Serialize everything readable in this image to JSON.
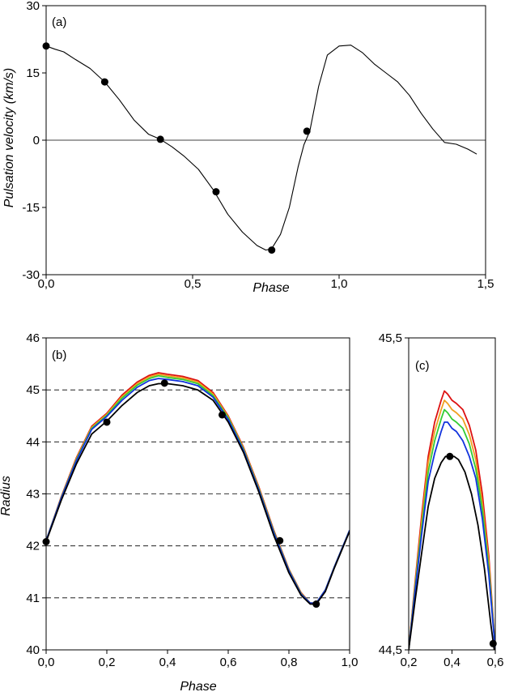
{
  "chart_data": [
    {
      "type": "line",
      "panel_label": "(a)",
      "xlabel": "Phase",
      "ylabel": "Pulsation velocity (km/s)",
      "xlim": [
        0,
        1.5
      ],
      "ylim": [
        -30,
        30
      ],
      "x_ticks": [
        "0,0",
        "0,5",
        "1,0",
        "1,5"
      ],
      "x_tick_values": [
        0,
        0.5,
        1.0,
        1.5
      ],
      "y_ticks": [
        "30",
        "15",
        "0",
        "-15",
        "-30"
      ],
      "y_tick_values": [
        30,
        15,
        0,
        -15,
        -30
      ],
      "reference_line_y": 0,
      "series": [
        {
          "color": "#000000",
          "x": [
            0.0,
            0.03,
            0.06,
            0.1,
            0.15,
            0.2,
            0.25,
            0.3,
            0.35,
            0.39,
            0.43,
            0.47,
            0.52,
            0.57,
            0.62,
            0.67,
            0.72,
            0.75,
            0.77,
            0.8,
            0.83,
            0.86,
            0.88,
            0.9,
            0.93,
            0.96,
            1.0,
            1.04,
            1.08,
            1.12,
            1.16,
            1.2,
            1.24,
            1.28,
            1.32,
            1.36,
            1.4,
            1.44,
            1.47
          ],
          "y": [
            21,
            20.3,
            19.7,
            18,
            16,
            13,
            9,
            4.5,
            1.3,
            0.2,
            -1.5,
            -3.5,
            -6.5,
            -11,
            -16.5,
            -20.5,
            -23.5,
            -24.5,
            -24.2,
            -21,
            -15,
            -6,
            -1,
            2,
            12,
            19,
            21,
            21.2,
            19.5,
            17,
            15,
            13,
            10,
            6,
            2.5,
            -0.5,
            -0.9,
            -2,
            -3.1
          ]
        }
      ],
      "markers": {
        "x": [
          0.0,
          0.2,
          0.39,
          0.58,
          0.77,
          0.89
        ],
        "y": [
          21,
          13,
          0.2,
          -11.5,
          -24.5,
          2
        ]
      }
    },
    {
      "type": "line",
      "panel_label": "(b)",
      "xlabel": "Phase",
      "ylabel": "Radius",
      "xlim": [
        0,
        1.0
      ],
      "ylim": [
        40,
        46
      ],
      "x_ticks": [
        "0,0",
        "0,2",
        "0,4",
        "0,6",
        "0,8",
        "1,0"
      ],
      "x_tick_values": [
        0,
        0.2,
        0.4,
        0.6,
        0.8,
        1.0
      ],
      "y_ticks": [
        "46",
        "45",
        "44",
        "43",
        "42",
        "41",
        "40"
      ],
      "y_tick_values": [
        46,
        45,
        44,
        43,
        42,
        41,
        40
      ],
      "dashed_gridlines_y": [
        41,
        42,
        43,
        44,
        45
      ],
      "series": [
        {
          "color": "#dd1111",
          "x": [
            0.0,
            0.05,
            0.1,
            0.15,
            0.2,
            0.25,
            0.3,
            0.34,
            0.37,
            0.4,
            0.45,
            0.5,
            0.55,
            0.6,
            0.65,
            0.7,
            0.75,
            0.8,
            0.84,
            0.87,
            0.89,
            0.92,
            0.95,
            1.0
          ],
          "y": [
            42.1,
            42.95,
            43.7,
            44.3,
            44.55,
            44.9,
            45.15,
            45.28,
            45.33,
            45.3,
            45.26,
            45.18,
            44.95,
            44.5,
            43.9,
            43.15,
            42.3,
            41.55,
            41.1,
            40.9,
            40.9,
            41.15,
            41.6,
            42.3
          ]
        },
        {
          "color": "#f0a020",
          "x": [
            0.0,
            0.05,
            0.1,
            0.15,
            0.2,
            0.25,
            0.3,
            0.34,
            0.37,
            0.4,
            0.45,
            0.5,
            0.55,
            0.6,
            0.65,
            0.7,
            0.75,
            0.8,
            0.84,
            0.87,
            0.89,
            0.92,
            0.95,
            1.0
          ],
          "y": [
            42.1,
            42.94,
            43.68,
            44.28,
            44.53,
            44.87,
            45.12,
            45.25,
            45.3,
            45.27,
            45.23,
            45.15,
            44.92,
            44.48,
            43.88,
            43.13,
            42.28,
            41.54,
            41.09,
            40.9,
            40.9,
            41.15,
            41.6,
            42.3
          ]
        },
        {
          "color": "#33cc33",
          "x": [
            0.0,
            0.05,
            0.1,
            0.15,
            0.2,
            0.25,
            0.3,
            0.34,
            0.37,
            0.4,
            0.45,
            0.5,
            0.55,
            0.6,
            0.65,
            0.7,
            0.75,
            0.8,
            0.84,
            0.87,
            0.89,
            0.92,
            0.95,
            1.0
          ],
          "y": [
            42.1,
            42.93,
            43.66,
            44.26,
            44.51,
            44.84,
            45.09,
            45.22,
            45.27,
            45.24,
            45.2,
            45.12,
            44.89,
            44.46,
            43.86,
            43.11,
            42.27,
            41.53,
            41.08,
            40.9,
            40.9,
            41.15,
            41.6,
            42.3
          ]
        },
        {
          "color": "#1133dd",
          "x": [
            0.0,
            0.05,
            0.1,
            0.15,
            0.2,
            0.25,
            0.3,
            0.34,
            0.37,
            0.4,
            0.45,
            0.5,
            0.55,
            0.6,
            0.65,
            0.7,
            0.75,
            0.8,
            0.84,
            0.87,
            0.89,
            0.92,
            0.95,
            1.0
          ],
          "y": [
            42.1,
            42.92,
            43.64,
            44.24,
            44.49,
            44.8,
            45.05,
            45.18,
            45.22,
            45.2,
            45.16,
            45.08,
            44.86,
            44.43,
            43.84,
            43.09,
            42.25,
            41.52,
            41.07,
            40.9,
            40.9,
            41.15,
            41.6,
            42.3
          ]
        },
        {
          "color": "#000000",
          "x": [
            0.0,
            0.05,
            0.1,
            0.15,
            0.2,
            0.25,
            0.3,
            0.34,
            0.37,
            0.4,
            0.45,
            0.5,
            0.55,
            0.6,
            0.65,
            0.7,
            0.75,
            0.8,
            0.84,
            0.87,
            0.89,
            0.92,
            0.95,
            1.0
          ],
          "y": [
            42.08,
            42.88,
            43.58,
            44.15,
            44.4,
            44.7,
            44.95,
            45.08,
            45.12,
            45.12,
            45.08,
            45.0,
            44.8,
            44.38,
            43.8,
            43.05,
            42.2,
            41.48,
            41.05,
            40.88,
            40.88,
            41.12,
            41.58,
            42.28
          ]
        }
      ],
      "markers": {
        "x": [
          0.0,
          0.2,
          0.39,
          0.58,
          0.77,
          0.89
        ],
        "y": [
          42.08,
          44.38,
          45.13,
          44.52,
          42.1,
          40.88
        ]
      }
    },
    {
      "type": "line",
      "panel_label": "(c)",
      "xlim": [
        0.2,
        0.6
      ],
      "ylim": [
        44.5,
        45.5
      ],
      "x_ticks": [
        "0,2",
        "0,4",
        "0,6"
      ],
      "x_tick_values": [
        0.2,
        0.4,
        0.6
      ],
      "y_ticks": [
        "45,5",
        "44,5"
      ],
      "y_tick_values": [
        45.5,
        44.5
      ],
      "series": [
        {
          "color": "#dd1111",
          "x": [
            0.2,
            0.23,
            0.26,
            0.29,
            0.32,
            0.35,
            0.365,
            0.38,
            0.4,
            0.42,
            0.45,
            0.48,
            0.51,
            0.54,
            0.57,
            0.6
          ],
          "y": [
            44.5,
            44.72,
            44.93,
            45.12,
            45.23,
            45.3,
            45.33,
            45.32,
            45.3,
            45.29,
            45.27,
            45.22,
            45.14,
            45.0,
            44.8,
            44.5
          ]
        },
        {
          "color": "#f0a020",
          "x": [
            0.2,
            0.23,
            0.26,
            0.29,
            0.32,
            0.35,
            0.365,
            0.38,
            0.4,
            0.42,
            0.45,
            0.48,
            0.51,
            0.54,
            0.57,
            0.6
          ],
          "y": [
            44.5,
            44.71,
            44.91,
            45.1,
            45.2,
            45.27,
            45.3,
            45.29,
            45.27,
            45.26,
            45.24,
            45.19,
            45.11,
            44.97,
            44.78,
            44.5
          ]
        },
        {
          "color": "#33cc33",
          "x": [
            0.2,
            0.23,
            0.26,
            0.29,
            0.32,
            0.35,
            0.365,
            0.38,
            0.4,
            0.42,
            0.45,
            0.48,
            0.51,
            0.54,
            0.57,
            0.6
          ],
          "y": [
            44.5,
            44.7,
            44.89,
            45.07,
            45.17,
            45.24,
            45.27,
            45.26,
            45.24,
            45.23,
            45.21,
            45.16,
            45.08,
            44.95,
            44.76,
            44.5
          ]
        },
        {
          "color": "#1133dd",
          "x": [
            0.2,
            0.23,
            0.26,
            0.29,
            0.32,
            0.35,
            0.365,
            0.38,
            0.4,
            0.42,
            0.45,
            0.48,
            0.51,
            0.54,
            0.57,
            0.6
          ],
          "y": [
            44.5,
            44.69,
            44.87,
            45.04,
            45.13,
            45.2,
            45.23,
            45.23,
            45.21,
            45.2,
            45.17,
            45.12,
            45.05,
            44.92,
            44.74,
            44.5
          ]
        },
        {
          "color": "#000000",
          "x": [
            0.2,
            0.23,
            0.26,
            0.29,
            0.32,
            0.35,
            0.37,
            0.39,
            0.41,
            0.43,
            0.46,
            0.49,
            0.52,
            0.55,
            0.58,
            0.595
          ],
          "y": [
            44.5,
            44.66,
            44.81,
            44.96,
            45.05,
            45.1,
            45.12,
            45.12,
            45.12,
            45.11,
            45.07,
            45.0,
            44.9,
            44.76,
            44.58,
            44.5
          ]
        }
      ],
      "markers": {
        "x": [
          0.39,
          0.59
        ],
        "y": [
          45.12,
          44.52
        ]
      }
    }
  ]
}
